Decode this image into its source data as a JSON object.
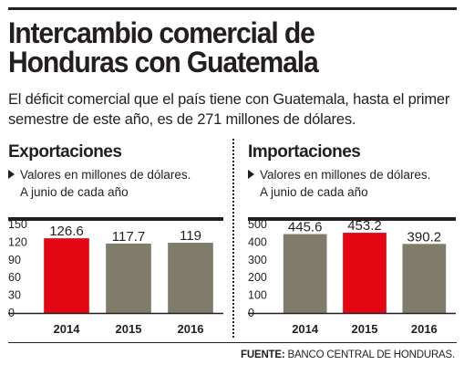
{
  "header": {
    "title_line1": "Intercambio comercial de",
    "title_line2": "Honduras con Guatemala",
    "subtitle": "El déficit comercial que el país tiene con Guatemala, hasta el primer semestre de este año, es de 271 millones de dólares."
  },
  "colors": {
    "highlight": "#e30613",
    "bar": "#7f7c69",
    "text": "#231f20"
  },
  "exports": {
    "title": "Exportaciones",
    "note_line1": "Valores en millones de dólares.",
    "note_line2": "A junio de cada año"
  },
  "imports": {
    "title": "Importaciones",
    "note_line1": "Valores en millones de dólares.",
    "note_line2": "A junio de cada año"
  },
  "source": {
    "label": "FUENTE:",
    "text": "BANCO CENTRAL DE HONDURAS."
  },
  "chart_data": [
    {
      "type": "bar",
      "title": "Exportaciones",
      "categories": [
        "2014",
        "2015",
        "2016"
      ],
      "values": [
        126.6,
        117.7,
        119
      ],
      "value_labels": [
        "126.6",
        "117.7",
        "119"
      ],
      "highlight_index": 0,
      "ylim": [
        0,
        150
      ],
      "yticks": [
        0,
        30,
        60,
        90,
        120,
        150
      ],
      "ytick_labels": [
        "0",
        "30",
        "60",
        "90",
        "120",
        "150"
      ],
      "grid": false
    },
    {
      "type": "bar",
      "title": "Importaciones",
      "categories": [
        "2014",
        "2015",
        "2016"
      ],
      "values": [
        445.6,
        453.2,
        390.2
      ],
      "value_labels": [
        "445.6",
        "453.2",
        "390.2"
      ],
      "highlight_index": 1,
      "ylim": [
        0,
        500
      ],
      "yticks": [
        0,
        100,
        200,
        300,
        400,
        500
      ],
      "ytick_labels": [
        "0",
        "100",
        "200",
        "300",
        "400",
        "500"
      ],
      "grid": false
    }
  ]
}
